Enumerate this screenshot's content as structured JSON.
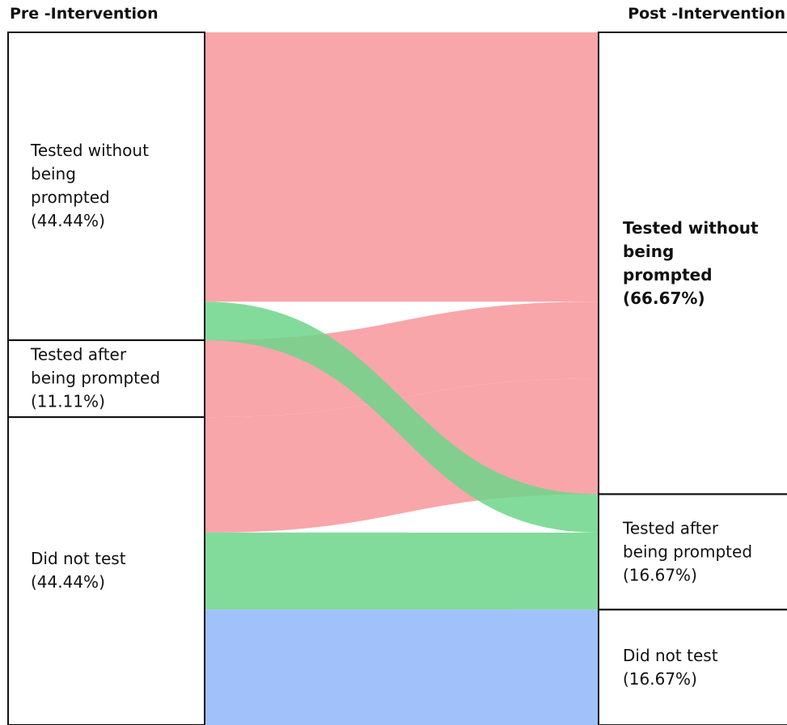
{
  "chart_data": {
    "type": "sankey",
    "columns": [
      "Pre -Intervention",
      "Post -Intervention"
    ],
    "nodes": [
      {
        "column": 0,
        "label_lines": [
          "Tested without",
          "being",
          "prompted"
        ],
        "value": 44.44,
        "value_label": "(44.44%)"
      },
      {
        "column": 0,
        "label_lines": [
          "Tested after",
          "being prompted"
        ],
        "value": 11.11,
        "value_label": "(11.11%)"
      },
      {
        "column": 0,
        "label_lines": [
          "Did not test"
        ],
        "value": 44.44,
        "value_label": "(44.44%)"
      },
      {
        "column": 1,
        "label_lines": [
          "Tested without",
          "being",
          "prompted"
        ],
        "value": 66.67,
        "value_label": "(66.67%)",
        "bold": true,
        "color": "#f8a6aa"
      },
      {
        "column": 1,
        "label_lines": [
          "Tested after",
          "being prompted"
        ],
        "value": 16.67,
        "value_label": "(16.67%)",
        "color": "#6dd58a"
      },
      {
        "column": 1,
        "label_lines": [
          "Did not test"
        ],
        "value": 16.67,
        "value_label": "(16.67%)",
        "color": "#a1c1fb"
      }
    ],
    "flows": [
      {
        "source": 0,
        "target": 3,
        "value": 38.89
      },
      {
        "source": 0,
        "target": 4,
        "value": 5.56
      },
      {
        "source": 1,
        "target": 3,
        "value": 11.11
      },
      {
        "source": 2,
        "target": 3,
        "value": 16.67
      },
      {
        "source": 2,
        "target": 4,
        "value": 11.11
      },
      {
        "source": 2,
        "target": 5,
        "value": 16.67
      }
    ],
    "total": 100
  }
}
